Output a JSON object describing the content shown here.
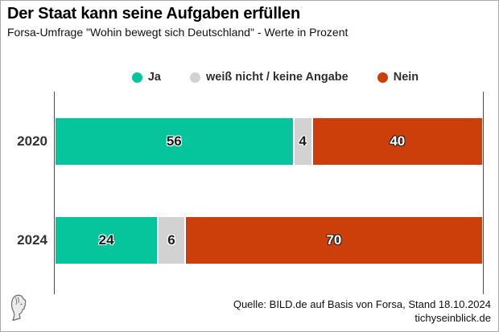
{
  "header": {
    "title": "Der Staat kann seine Aufgaben erfüllen",
    "subtitle": "Forsa-Umfrage \"Wohin bewegt sich Deutschland\" - Werte in Prozent"
  },
  "chart_data": {
    "type": "bar",
    "orientation": "horizontal_stacked",
    "value_unit": "percent",
    "xlim": [
      0,
      100
    ],
    "categories": [
      "2020",
      "2024"
    ],
    "series": [
      {
        "name": "Ja",
        "color": "#06C59C",
        "label_color": "#1a1a1a",
        "label_halo": "#ffffff",
        "values": [
          56,
          24
        ]
      },
      {
        "name": "weiß nicht / keine Angabe",
        "color": "#D2D2D2",
        "label_color": "#1a1a1a",
        "label_halo": "#ffffff",
        "values": [
          4,
          6
        ]
      },
      {
        "name": "Nein",
        "color": "#CC3E0A",
        "label_color": "#ffffff",
        "label_halo": "#242424",
        "values": [
          40,
          70
        ]
      }
    ],
    "legend_position": "top-center",
    "grid": false
  },
  "footer": {
    "source": "Quelle: BILD.de auf Basis von Forsa, Stand 18.10.2024",
    "site": "tichyseinblick.de",
    "logo_icon": "classical-head-logo"
  },
  "colors": {
    "axis_line": "#4d4d4d",
    "frame_border": "#a9a9a9",
    "background": "#ffffff"
  }
}
